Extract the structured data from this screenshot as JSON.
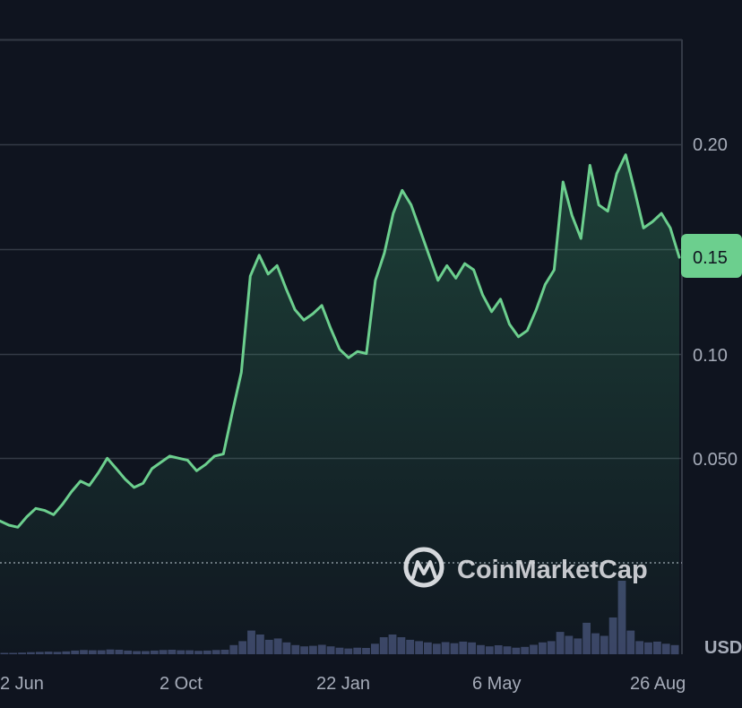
{
  "chart_data": {
    "type": "area",
    "x_tick_labels": [
      "2 Jun",
      "2 Oct",
      "22 Jan",
      "6 May",
      "26 Aug"
    ],
    "y_tick_labels": [
      "0.20",
      "0.10",
      "0.050"
    ],
    "y_ticks": [
      0.2,
      0.15,
      0.1,
      0.05
    ],
    "ylim": [
      0.0,
      0.25
    ],
    "grid": true,
    "currency_label": "USD",
    "last_price_label": "0.15",
    "last_price": 0.146,
    "series": [
      {
        "values": [
          0.02,
          0.018,
          0.017,
          0.022,
          0.026,
          0.025,
          0.023,
          0.028,
          0.034,
          0.039,
          0.037,
          0.043,
          0.05,
          0.045,
          0.04,
          0.036,
          0.038,
          0.045,
          0.048,
          0.051,
          0.05,
          0.049,
          0.044,
          0.047,
          0.051,
          0.052,
          0.072,
          0.091,
          0.137,
          0.147,
          0.138,
          0.142,
          0.131,
          0.121,
          0.116,
          0.119,
          0.123,
          0.112,
          0.102,
          0.098,
          0.101,
          0.1,
          0.135,
          0.148,
          0.167,
          0.178,
          0.171,
          0.159,
          0.147,
          0.135,
          0.142,
          0.136,
          0.143,
          0.14,
          0.128,
          0.12,
          0.126,
          0.114,
          0.108,
          0.111,
          0.121,
          0.133,
          0.14,
          0.182,
          0.166,
          0.155,
          0.19,
          0.171,
          0.168,
          0.186,
          0.195,
          0.178,
          0.16,
          0.163,
          0.167,
          0.16,
          0.146
        ]
      }
    ],
    "volume": [
      0.5,
      0.5,
      0.6,
      0.8,
      0.9,
      1.0,
      0.9,
      1.1,
      1.4,
      1.6,
      1.5,
      1.5,
      1.8,
      1.7,
      1.4,
      1.2,
      1.2,
      1.4,
      1.6,
      1.7,
      1.5,
      1.5,
      1.3,
      1.4,
      1.6,
      1.7,
      3.5,
      5.0,
      9.0,
      7.5,
      5.5,
      6.0,
      4.5,
      3.5,
      3.0,
      3.2,
      3.6,
      3.0,
      2.5,
      2.2,
      2.5,
      2.4,
      4.0,
      6.5,
      7.5,
      6.5,
      5.5,
      5.0,
      4.5,
      4.0,
      4.6,
      4.2,
      4.8,
      4.5,
      3.5,
      3.0,
      3.4,
      3.0,
      2.5,
      2.8,
      3.6,
      4.5,
      5.0,
      8.5,
      7.0,
      6.0,
      12.0,
      8.0,
      7.0,
      14.0,
      28.0,
      9.0,
      5.0,
      4.5,
      4.8,
      4.0,
      3.5
    ]
  },
  "watermark": {
    "text": "CoinMarketCap"
  },
  "colors": {
    "background": "#0f141f",
    "line": "#6ccf8e",
    "grid": "#343a46",
    "tick_text": "#a6acb9",
    "badge": "#6ccf8e",
    "volume": "#3b4466"
  }
}
